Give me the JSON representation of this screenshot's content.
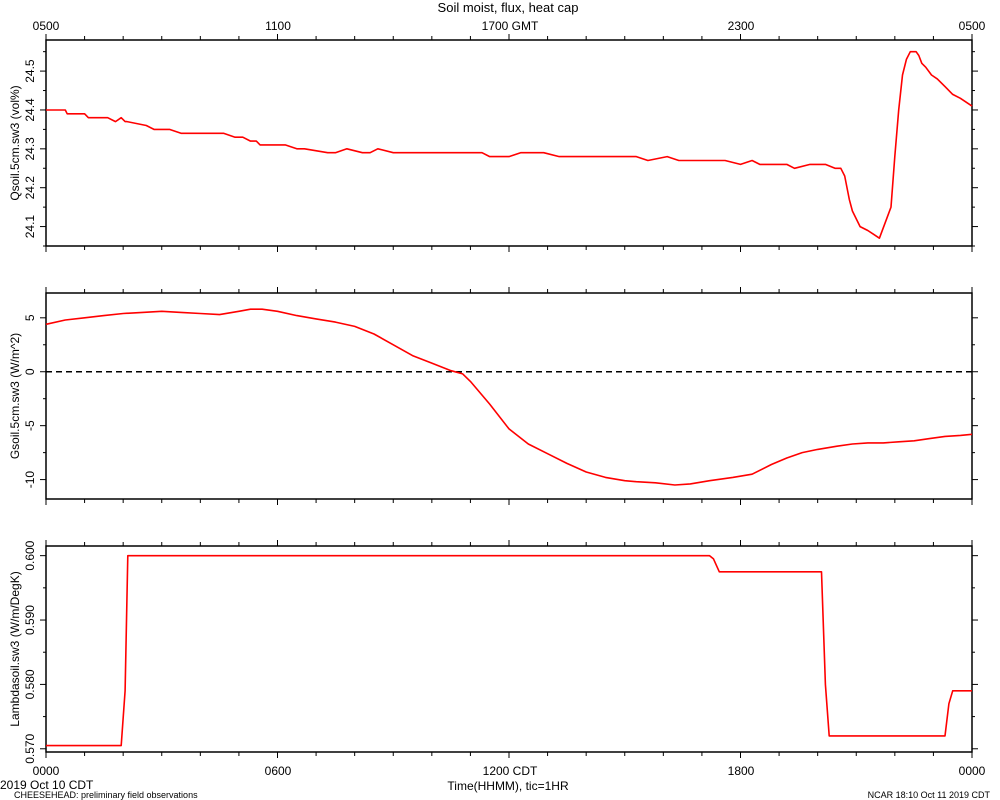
{
  "figure": {
    "title": "Soil moist, flux, heat cap",
    "top_axis_ticks": [
      "0500",
      "1100",
      "1700 GMT",
      "2300",
      "0500"
    ],
    "bottom_axis_ticks": [
      "0000",
      "0600",
      "1200 CDT",
      "1800",
      "0000"
    ],
    "xlabel": "Time(HHMM), tic=1HR",
    "date_label": "2019 Oct 10 CDT",
    "footer_left": "CHEESEHEAD: preliminary field observations",
    "footer_right": "NCAR 18:10 Oct 11 2019 CDT"
  },
  "chart_data": [
    {
      "type": "line",
      "ylabel": "Qsoil.5cm.sw3 (vol%)",
      "ylim": [
        24.05,
        24.58
      ],
      "yticks": [
        "24.1",
        "24.2",
        "24.3",
        "24.4",
        "24.5"
      ],
      "yticks_values": [
        24.1,
        24.2,
        24.3,
        24.4,
        24.5
      ],
      "xlim": [
        0,
        24
      ],
      "color": "#ff0000",
      "x": [
        0,
        0.5,
        0.55,
        1,
        1.1,
        1.6,
        1.8,
        1.95,
        2.05,
        2.1,
        2.6,
        2.8,
        3.2,
        3.5,
        3.8,
        4.6,
        4.9,
        5.1,
        5.3,
        5.45,
        5.55,
        5.7,
        6.2,
        6.5,
        6.7,
        7.3,
        7.5,
        7.8,
        8.2,
        8.4,
        8.6,
        9.0,
        9.4,
        10,
        10.6,
        11.3,
        11.5,
        11.8,
        12.0,
        12.3,
        12.6,
        12.9,
        13.3,
        13.7,
        14.0,
        14.5,
        15.0,
        15.3,
        15.6,
        16.1,
        16.4,
        16.7,
        17.1,
        17.4,
        17.6,
        18.0,
        18.3,
        18.5,
        18.8,
        19.0,
        19.2,
        19.4,
        19.8,
        20.0,
        20.2,
        20.45,
        20.6,
        20.7,
        20.82,
        20.9,
        21.1,
        21.3,
        21.45,
        21.6,
        21.75,
        21.9,
        22.0,
        22.1,
        22.2,
        22.3,
        22.4,
        22.55,
        22.62,
        22.7,
        22.8,
        22.95,
        23.1,
        23.3,
        23.5,
        23.7,
        24.0
      ],
      "values": [
        24.4,
        24.4,
        24.39,
        24.39,
        24.38,
        24.38,
        24.37,
        24.38,
        24.37,
        24.37,
        24.36,
        24.35,
        24.35,
        24.34,
        24.34,
        24.34,
        24.33,
        24.33,
        24.32,
        24.32,
        24.31,
        24.31,
        24.31,
        24.3,
        24.3,
        24.29,
        24.29,
        24.3,
        24.29,
        24.29,
        24.3,
        24.29,
        24.29,
        24.29,
        24.29,
        24.29,
        24.28,
        24.28,
        24.28,
        24.29,
        24.29,
        24.29,
        24.28,
        24.28,
        24.28,
        24.28,
        24.28,
        24.28,
        24.27,
        24.28,
        24.27,
        24.27,
        24.27,
        24.27,
        24.27,
        24.26,
        24.27,
        24.26,
        24.26,
        24.26,
        24.26,
        24.25,
        24.26,
        24.26,
        24.26,
        24.25,
        24.25,
        24.23,
        24.17,
        24.14,
        24.1,
        24.09,
        24.08,
        24.07,
        24.11,
        24.15,
        24.28,
        24.4,
        24.49,
        24.53,
        24.55,
        24.55,
        24.54,
        24.52,
        24.51,
        24.49,
        24.48,
        24.46,
        24.44,
        24.43,
        24.41
      ]
    },
    {
      "type": "line",
      "ylabel": "Gsoil.5cm.sw3 (W/m^2)",
      "ylim": [
        -11.8,
        7.3
      ],
      "yticks": [
        "-10",
        "-5",
        "0",
        "5"
      ],
      "yticks_values": [
        -10,
        -5,
        0,
        5
      ],
      "xlim": [
        0,
        24
      ],
      "zero_line": true,
      "color": "#ff0000",
      "x": [
        0,
        0.5,
        1,
        1.5,
        2,
        2.5,
        3,
        3.5,
        4,
        4.5,
        5,
        5.3,
        5.6,
        6,
        6.5,
        7,
        7.5,
        8,
        8.5,
        9,
        9.5,
        10,
        10.5,
        10.8,
        11,
        11.5,
        12,
        12.5,
        13,
        13.5,
        14,
        14.5,
        15,
        15.3,
        15.8,
        16.3,
        16.7,
        17.2,
        17.8,
        18.3,
        18.8,
        19.2,
        19.6,
        20,
        20.5,
        20.9,
        21.3,
        21.7,
        22.1,
        22.5,
        22.9,
        23.3,
        23.7,
        24
      ],
      "values": [
        4.4,
        4.8,
        5.0,
        5.2,
        5.4,
        5.5,
        5.6,
        5.5,
        5.4,
        5.3,
        5.6,
        5.8,
        5.8,
        5.6,
        5.2,
        4.9,
        4.6,
        4.2,
        3.5,
        2.5,
        1.5,
        0.8,
        0.1,
        -0.2,
        -0.9,
        -3.0,
        -5.3,
        -6.7,
        -7.6,
        -8.5,
        -9.3,
        -9.8,
        -10.1,
        -10.2,
        -10.3,
        -10.5,
        -10.4,
        -10.1,
        -9.8,
        -9.5,
        -8.6,
        -8.0,
        -7.5,
        -7.2,
        -6.9,
        -6.7,
        -6.6,
        -6.6,
        -6.5,
        -6.4,
        -6.2,
        -6.0,
        -5.9,
        -5.8
      ]
    },
    {
      "type": "line",
      "ylabel": "Lambdasoil.sw3 (W/m/DegK)",
      "ylim": [
        0.5695,
        0.6015
      ],
      "yticks": [
        "0.570",
        "0.580",
        "0.590",
        "0.600"
      ],
      "yticks_values": [
        0.57,
        0.58,
        0.59,
        0.6
      ],
      "xlim": [
        0,
        24
      ],
      "color": "#ff0000",
      "x": [
        0,
        1.95,
        2.05,
        2.12,
        17.2,
        17.3,
        17.45,
        20.1,
        20.2,
        20.3,
        23.3,
        23.4,
        23.5,
        24
      ],
      "values": [
        0.5705,
        0.5705,
        0.579,
        0.6,
        0.6,
        0.5995,
        0.5975,
        0.5975,
        0.58,
        0.572,
        0.572,
        0.577,
        0.579,
        0.579
      ]
    }
  ]
}
